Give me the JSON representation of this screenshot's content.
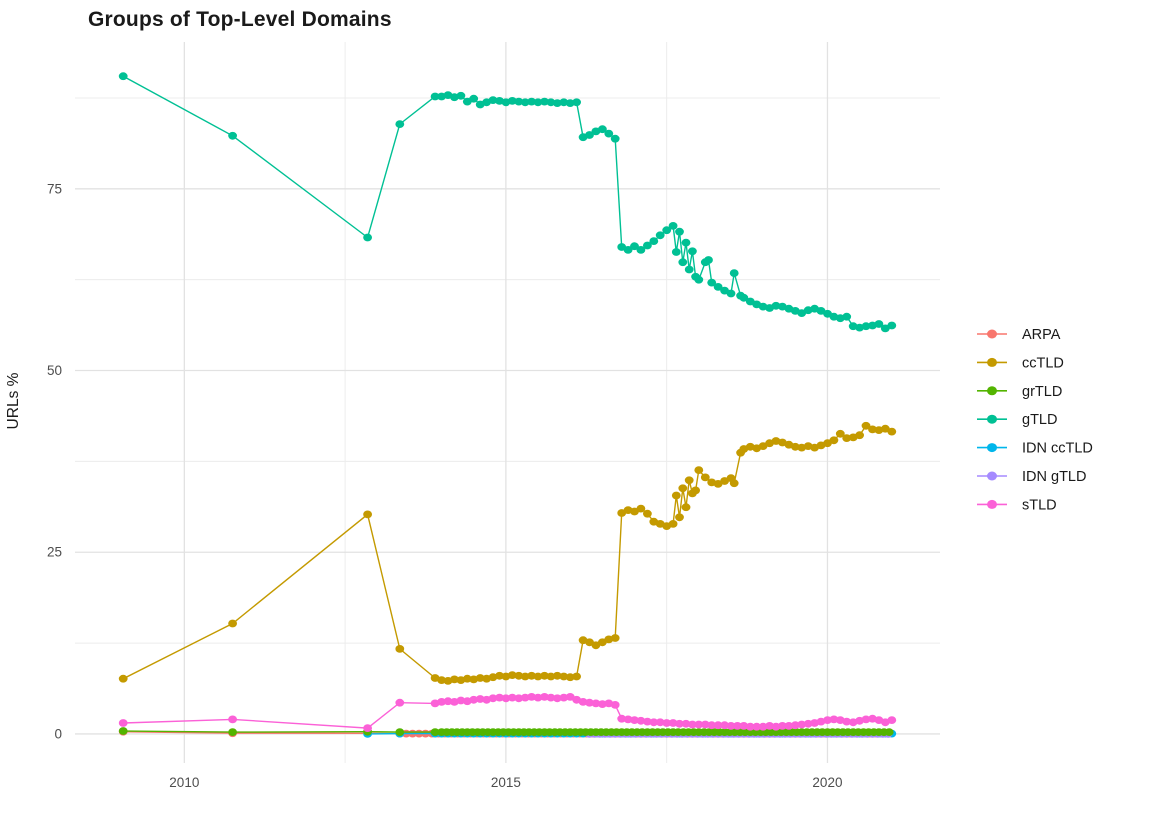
{
  "chart_data": {
    "type": "line",
    "title": "Groups of Top-Level Domains",
    "xlabel": "",
    "ylabel": "URLs %",
    "x_ticks": [
      {
        "value": 2010,
        "label": "2010"
      },
      {
        "value": 2015,
        "label": "2015"
      },
      {
        "value": 2020,
        "label": "2020"
      }
    ],
    "y_ticks": [
      {
        "value": 0,
        "label": "0"
      },
      {
        "value": 25,
        "label": "25"
      },
      {
        "value": 50,
        "label": "50"
      },
      {
        "value": 75,
        "label": "75"
      }
    ],
    "x_minor": [
      2012.5,
      2017.5
    ],
    "y_minor": [
      12.5,
      37.5,
      62.5,
      87.5
    ],
    "x_domain": [
      2008.3,
      2021.75
    ],
    "y_domain": [
      -4,
      95.2
    ],
    "grid_major_color": "#e2e2e2",
    "grid_minor_color": "#ececec",
    "axis_text_color": "#4d4d4d",
    "title_color": "#1a1a1a",
    "legend_position": "right",
    "legend_text_color": "#1a1a1a",
    "draw_order": [
      "ARPA",
      "IDN ccTLD",
      "IDN gTLD",
      "ccTLD",
      "grTLD",
      "gTLD",
      "sTLD"
    ],
    "series": [
      {
        "name": "ARPA",
        "color": "#F8766D",
        "points": [
          [
            2009.05,
            0.3
          ],
          [
            2010.75,
            0.1
          ],
          [
            2012.85,
            0.08
          ]
        ],
        "flat": {
          "from": 2013.35,
          "to": 2021.0,
          "step": 0.1,
          "value": 0.05
        }
      },
      {
        "name": "ccTLD",
        "color": "#C49A00",
        "points": [
          [
            2009.05,
            7.6
          ],
          [
            2010.75,
            15.2
          ],
          [
            2012.85,
            30.2
          ],
          [
            2013.35,
            11.7
          ],
          [
            2013.9,
            7.7
          ],
          [
            2014.0,
            7.4
          ],
          [
            2014.1,
            7.3
          ],
          [
            2014.2,
            7.5
          ],
          [
            2014.3,
            7.4
          ],
          [
            2014.4,
            7.6
          ],
          [
            2014.5,
            7.5
          ],
          [
            2014.6,
            7.7
          ],
          [
            2014.7,
            7.6
          ],
          [
            2014.8,
            7.8
          ],
          [
            2014.9,
            8.0
          ],
          [
            2015.0,
            7.9
          ],
          [
            2015.1,
            8.1
          ],
          [
            2015.2,
            8.0
          ],
          [
            2015.3,
            7.9
          ],
          [
            2015.4,
            8.0
          ],
          [
            2015.5,
            7.9
          ],
          [
            2015.6,
            8.0
          ],
          [
            2015.7,
            7.9
          ],
          [
            2015.8,
            8.0
          ],
          [
            2015.9,
            7.9
          ],
          [
            2016.0,
            7.8
          ],
          [
            2016.1,
            7.9
          ],
          [
            2016.2,
            12.9
          ],
          [
            2016.3,
            12.6
          ],
          [
            2016.4,
            12.2
          ],
          [
            2016.5,
            12.6
          ],
          [
            2016.6,
            13.0
          ],
          [
            2016.7,
            13.2
          ],
          [
            2016.8,
            30.4
          ],
          [
            2016.9,
            30.8
          ],
          [
            2017.0,
            30.6
          ],
          [
            2017.1,
            31.0
          ],
          [
            2017.2,
            30.3
          ],
          [
            2017.3,
            29.2
          ],
          [
            2017.4,
            28.9
          ],
          [
            2017.5,
            28.6
          ],
          [
            2017.6,
            28.9
          ],
          [
            2017.65,
            32.8
          ],
          [
            2017.7,
            29.8
          ],
          [
            2017.75,
            33.8
          ],
          [
            2017.8,
            31.2
          ],
          [
            2017.85,
            34.9
          ],
          [
            2017.9,
            33.1
          ],
          [
            2017.95,
            33.5
          ],
          [
            2018.0,
            36.3
          ],
          [
            2018.1,
            35.3
          ],
          [
            2018.2,
            34.6
          ],
          [
            2018.3,
            34.4
          ],
          [
            2018.4,
            34.8
          ],
          [
            2018.5,
            35.2
          ],
          [
            2018.55,
            34.5
          ],
          [
            2018.65,
            38.7
          ],
          [
            2018.7,
            39.2
          ],
          [
            2018.8,
            39.5
          ],
          [
            2018.9,
            39.3
          ],
          [
            2019.0,
            39.6
          ],
          [
            2019.1,
            40.0
          ],
          [
            2019.2,
            40.3
          ],
          [
            2019.3,
            40.1
          ],
          [
            2019.4,
            39.8
          ],
          [
            2019.5,
            39.5
          ],
          [
            2019.6,
            39.4
          ],
          [
            2019.7,
            39.6
          ],
          [
            2019.8,
            39.4
          ],
          [
            2019.9,
            39.7
          ],
          [
            2020.0,
            40.0
          ],
          [
            2020.1,
            40.4
          ],
          [
            2020.2,
            41.3
          ],
          [
            2020.3,
            40.7
          ],
          [
            2020.4,
            40.8
          ],
          [
            2020.5,
            41.1
          ],
          [
            2020.6,
            42.4
          ],
          [
            2020.7,
            41.9
          ],
          [
            2020.8,
            41.8
          ],
          [
            2020.9,
            42.0
          ],
          [
            2021.0,
            41.6
          ]
        ]
      },
      {
        "name": "grTLD",
        "color": "#53B400",
        "points": [
          [
            2009.05,
            0.4
          ],
          [
            2010.75,
            0.25
          ],
          [
            2012.85,
            0.3
          ],
          [
            2013.35,
            0.25
          ],
          [
            2013.9,
            0.25
          ]
        ],
        "flat": {
          "from": 2014.0,
          "to": 2021.0,
          "step": 0.08,
          "value": 0.25
        }
      },
      {
        "name": "gTLD",
        "color": "#00C094",
        "points": [
          [
            2009.05,
            90.5
          ],
          [
            2010.75,
            82.3
          ],
          [
            2012.85,
            68.3
          ],
          [
            2013.35,
            83.9
          ],
          [
            2013.9,
            87.7
          ],
          [
            2014.0,
            87.7
          ],
          [
            2014.1,
            87.9
          ],
          [
            2014.2,
            87.6
          ],
          [
            2014.3,
            87.8
          ],
          [
            2014.4,
            87.0
          ],
          [
            2014.5,
            87.4
          ],
          [
            2014.6,
            86.6
          ],
          [
            2014.7,
            86.9
          ],
          [
            2014.8,
            87.2
          ],
          [
            2014.9,
            87.1
          ],
          [
            2015.0,
            86.9
          ],
          [
            2015.1,
            87.1
          ],
          [
            2015.2,
            87.0
          ],
          [
            2015.3,
            86.9
          ],
          [
            2015.4,
            87.0
          ],
          [
            2015.5,
            86.9
          ],
          [
            2015.6,
            87.0
          ],
          [
            2015.7,
            86.9
          ],
          [
            2015.8,
            86.8
          ],
          [
            2015.9,
            86.9
          ],
          [
            2016.0,
            86.8
          ],
          [
            2016.1,
            86.9
          ],
          [
            2016.2,
            82.1
          ],
          [
            2016.3,
            82.4
          ],
          [
            2016.4,
            82.9
          ],
          [
            2016.5,
            83.2
          ],
          [
            2016.6,
            82.6
          ],
          [
            2016.7,
            81.9
          ],
          [
            2016.8,
            67.0
          ],
          [
            2016.9,
            66.6
          ],
          [
            2017.0,
            67.1
          ],
          [
            2017.1,
            66.6
          ],
          [
            2017.2,
            67.2
          ],
          [
            2017.3,
            67.8
          ],
          [
            2017.4,
            68.6
          ],
          [
            2017.5,
            69.3
          ],
          [
            2017.6,
            69.9
          ],
          [
            2017.65,
            66.3
          ],
          [
            2017.7,
            69.1
          ],
          [
            2017.75,
            64.9
          ],
          [
            2017.8,
            67.6
          ],
          [
            2017.85,
            63.9
          ],
          [
            2017.9,
            66.4
          ],
          [
            2017.95,
            62.9
          ],
          [
            2018.0,
            62.5
          ],
          [
            2018.1,
            64.9
          ],
          [
            2018.15,
            65.2
          ],
          [
            2018.2,
            62.1
          ],
          [
            2018.3,
            61.5
          ],
          [
            2018.4,
            61.0
          ],
          [
            2018.5,
            60.6
          ],
          [
            2018.55,
            63.4
          ],
          [
            2018.65,
            60.3
          ],
          [
            2018.7,
            60.0
          ],
          [
            2018.8,
            59.5
          ],
          [
            2018.9,
            59.1
          ],
          [
            2019.0,
            58.8
          ],
          [
            2019.1,
            58.6
          ],
          [
            2019.2,
            58.9
          ],
          [
            2019.3,
            58.8
          ],
          [
            2019.4,
            58.5
          ],
          [
            2019.5,
            58.2
          ],
          [
            2019.6,
            57.9
          ],
          [
            2019.7,
            58.3
          ],
          [
            2019.8,
            58.5
          ],
          [
            2019.9,
            58.2
          ],
          [
            2020.0,
            57.8
          ],
          [
            2020.1,
            57.4
          ],
          [
            2020.2,
            57.2
          ],
          [
            2020.3,
            57.4
          ],
          [
            2020.4,
            56.1
          ],
          [
            2020.5,
            55.9
          ],
          [
            2020.6,
            56.1
          ],
          [
            2020.7,
            56.2
          ],
          [
            2020.8,
            56.4
          ],
          [
            2020.9,
            55.8
          ],
          [
            2021.0,
            56.2
          ]
        ]
      },
      {
        "name": "IDN ccTLD",
        "color": "#00B6EB",
        "points": [
          [
            2012.85,
            0.0
          ],
          [
            2013.35,
            0.05
          ],
          [
            2013.9,
            0.05
          ]
        ],
        "flat": {
          "from": 2014.0,
          "to": 2021.0,
          "step": 0.1,
          "value": 0.05
        }
      },
      {
        "name": "IDN gTLD",
        "color": "#A58AFF",
        "points": [],
        "flat": {
          "from": 2016.3,
          "to": 2021.0,
          "step": 0.08,
          "value": 0.0
        }
      },
      {
        "name": "sTLD",
        "color": "#FB61D7",
        "points": [
          [
            2009.05,
            1.5
          ],
          [
            2010.75,
            2.0
          ],
          [
            2012.85,
            0.8
          ],
          [
            2013.35,
            4.3
          ],
          [
            2013.9,
            4.2
          ],
          [
            2014.0,
            4.4
          ],
          [
            2014.1,
            4.5
          ],
          [
            2014.2,
            4.4
          ],
          [
            2014.3,
            4.6
          ],
          [
            2014.4,
            4.5
          ],
          [
            2014.5,
            4.7
          ],
          [
            2014.6,
            4.8
          ],
          [
            2014.7,
            4.7
          ],
          [
            2014.8,
            4.9
          ],
          [
            2014.9,
            5.0
          ],
          [
            2015.0,
            4.9
          ],
          [
            2015.1,
            5.0
          ],
          [
            2015.2,
            4.9
          ],
          [
            2015.3,
            5.0
          ],
          [
            2015.4,
            5.1
          ],
          [
            2015.5,
            5.0
          ],
          [
            2015.6,
            5.1
          ],
          [
            2015.7,
            5.0
          ],
          [
            2015.8,
            4.9
          ],
          [
            2015.9,
            5.0
          ],
          [
            2016.0,
            5.1
          ],
          [
            2016.1,
            4.7
          ],
          [
            2016.2,
            4.4
          ],
          [
            2016.3,
            4.3
          ],
          [
            2016.4,
            4.2
          ],
          [
            2016.5,
            4.1
          ],
          [
            2016.6,
            4.2
          ],
          [
            2016.7,
            4.0
          ],
          [
            2016.8,
            2.1
          ],
          [
            2016.9,
            2.0
          ],
          [
            2017.0,
            1.9
          ],
          [
            2017.1,
            1.8
          ],
          [
            2017.2,
            1.7
          ],
          [
            2017.3,
            1.6
          ],
          [
            2017.4,
            1.6
          ],
          [
            2017.5,
            1.5
          ],
          [
            2017.6,
            1.5
          ],
          [
            2017.7,
            1.4
          ],
          [
            2017.8,
            1.4
          ],
          [
            2017.9,
            1.3
          ],
          [
            2018.0,
            1.3
          ],
          [
            2018.1,
            1.3
          ],
          [
            2018.2,
            1.2
          ],
          [
            2018.3,
            1.2
          ],
          [
            2018.4,
            1.2
          ],
          [
            2018.5,
            1.1
          ],
          [
            2018.6,
            1.1
          ],
          [
            2018.7,
            1.1
          ],
          [
            2018.8,
            1.0
          ],
          [
            2018.9,
            1.0
          ],
          [
            2019.0,
            1.0
          ],
          [
            2019.1,
            1.1
          ],
          [
            2019.2,
            1.0
          ],
          [
            2019.3,
            1.1
          ],
          [
            2019.4,
            1.1
          ],
          [
            2019.5,
            1.2
          ],
          [
            2019.6,
            1.3
          ],
          [
            2019.7,
            1.4
          ],
          [
            2019.8,
            1.5
          ],
          [
            2019.9,
            1.7
          ],
          [
            2020.0,
            1.9
          ],
          [
            2020.1,
            2.0
          ],
          [
            2020.2,
            1.9
          ],
          [
            2020.3,
            1.7
          ],
          [
            2020.4,
            1.6
          ],
          [
            2020.5,
            1.8
          ],
          [
            2020.6,
            2.0
          ],
          [
            2020.7,
            2.1
          ],
          [
            2020.8,
            1.9
          ],
          [
            2020.9,
            1.6
          ],
          [
            2021.0,
            1.9
          ]
        ]
      }
    ]
  }
}
